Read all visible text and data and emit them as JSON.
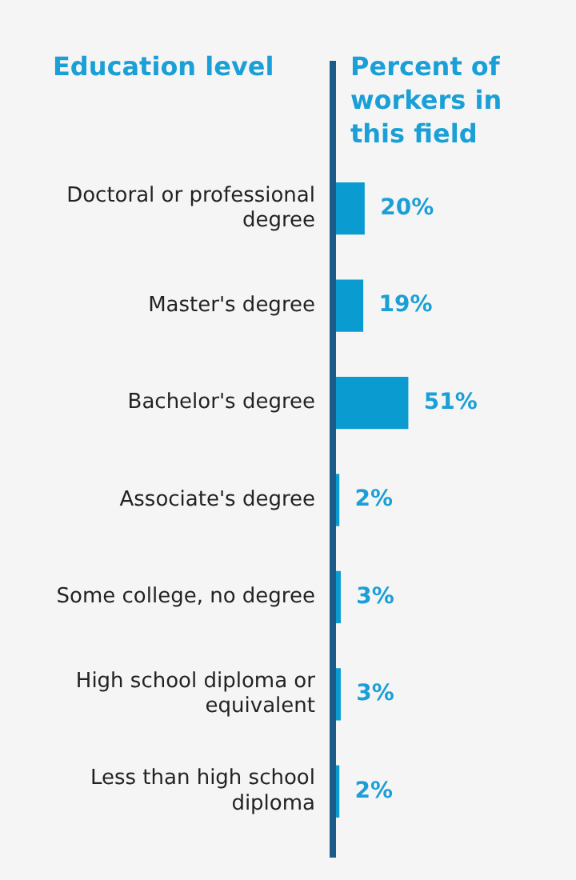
{
  "chart_data": {
    "type": "bar",
    "orientation": "horizontal",
    "ylabel": "Education level",
    "xlabel": "Percent of workers in this field",
    "categories": [
      "Doctoral or professional degree",
      "Master's degree",
      "Bachelor's degree",
      "Associate's degree",
      "Some college, no degree",
      "High school diploma or equivalent",
      "Less than high school diploma"
    ],
    "values": [
      20,
      19,
      51,
      2,
      3,
      3,
      2
    ],
    "value_labels": [
      "20%",
      "19%",
      "51%",
      "2%",
      "3%",
      "3%",
      "2%"
    ],
    "color": "#0a9bd0",
    "tick_labels": "y",
    "legend": false
  }
}
